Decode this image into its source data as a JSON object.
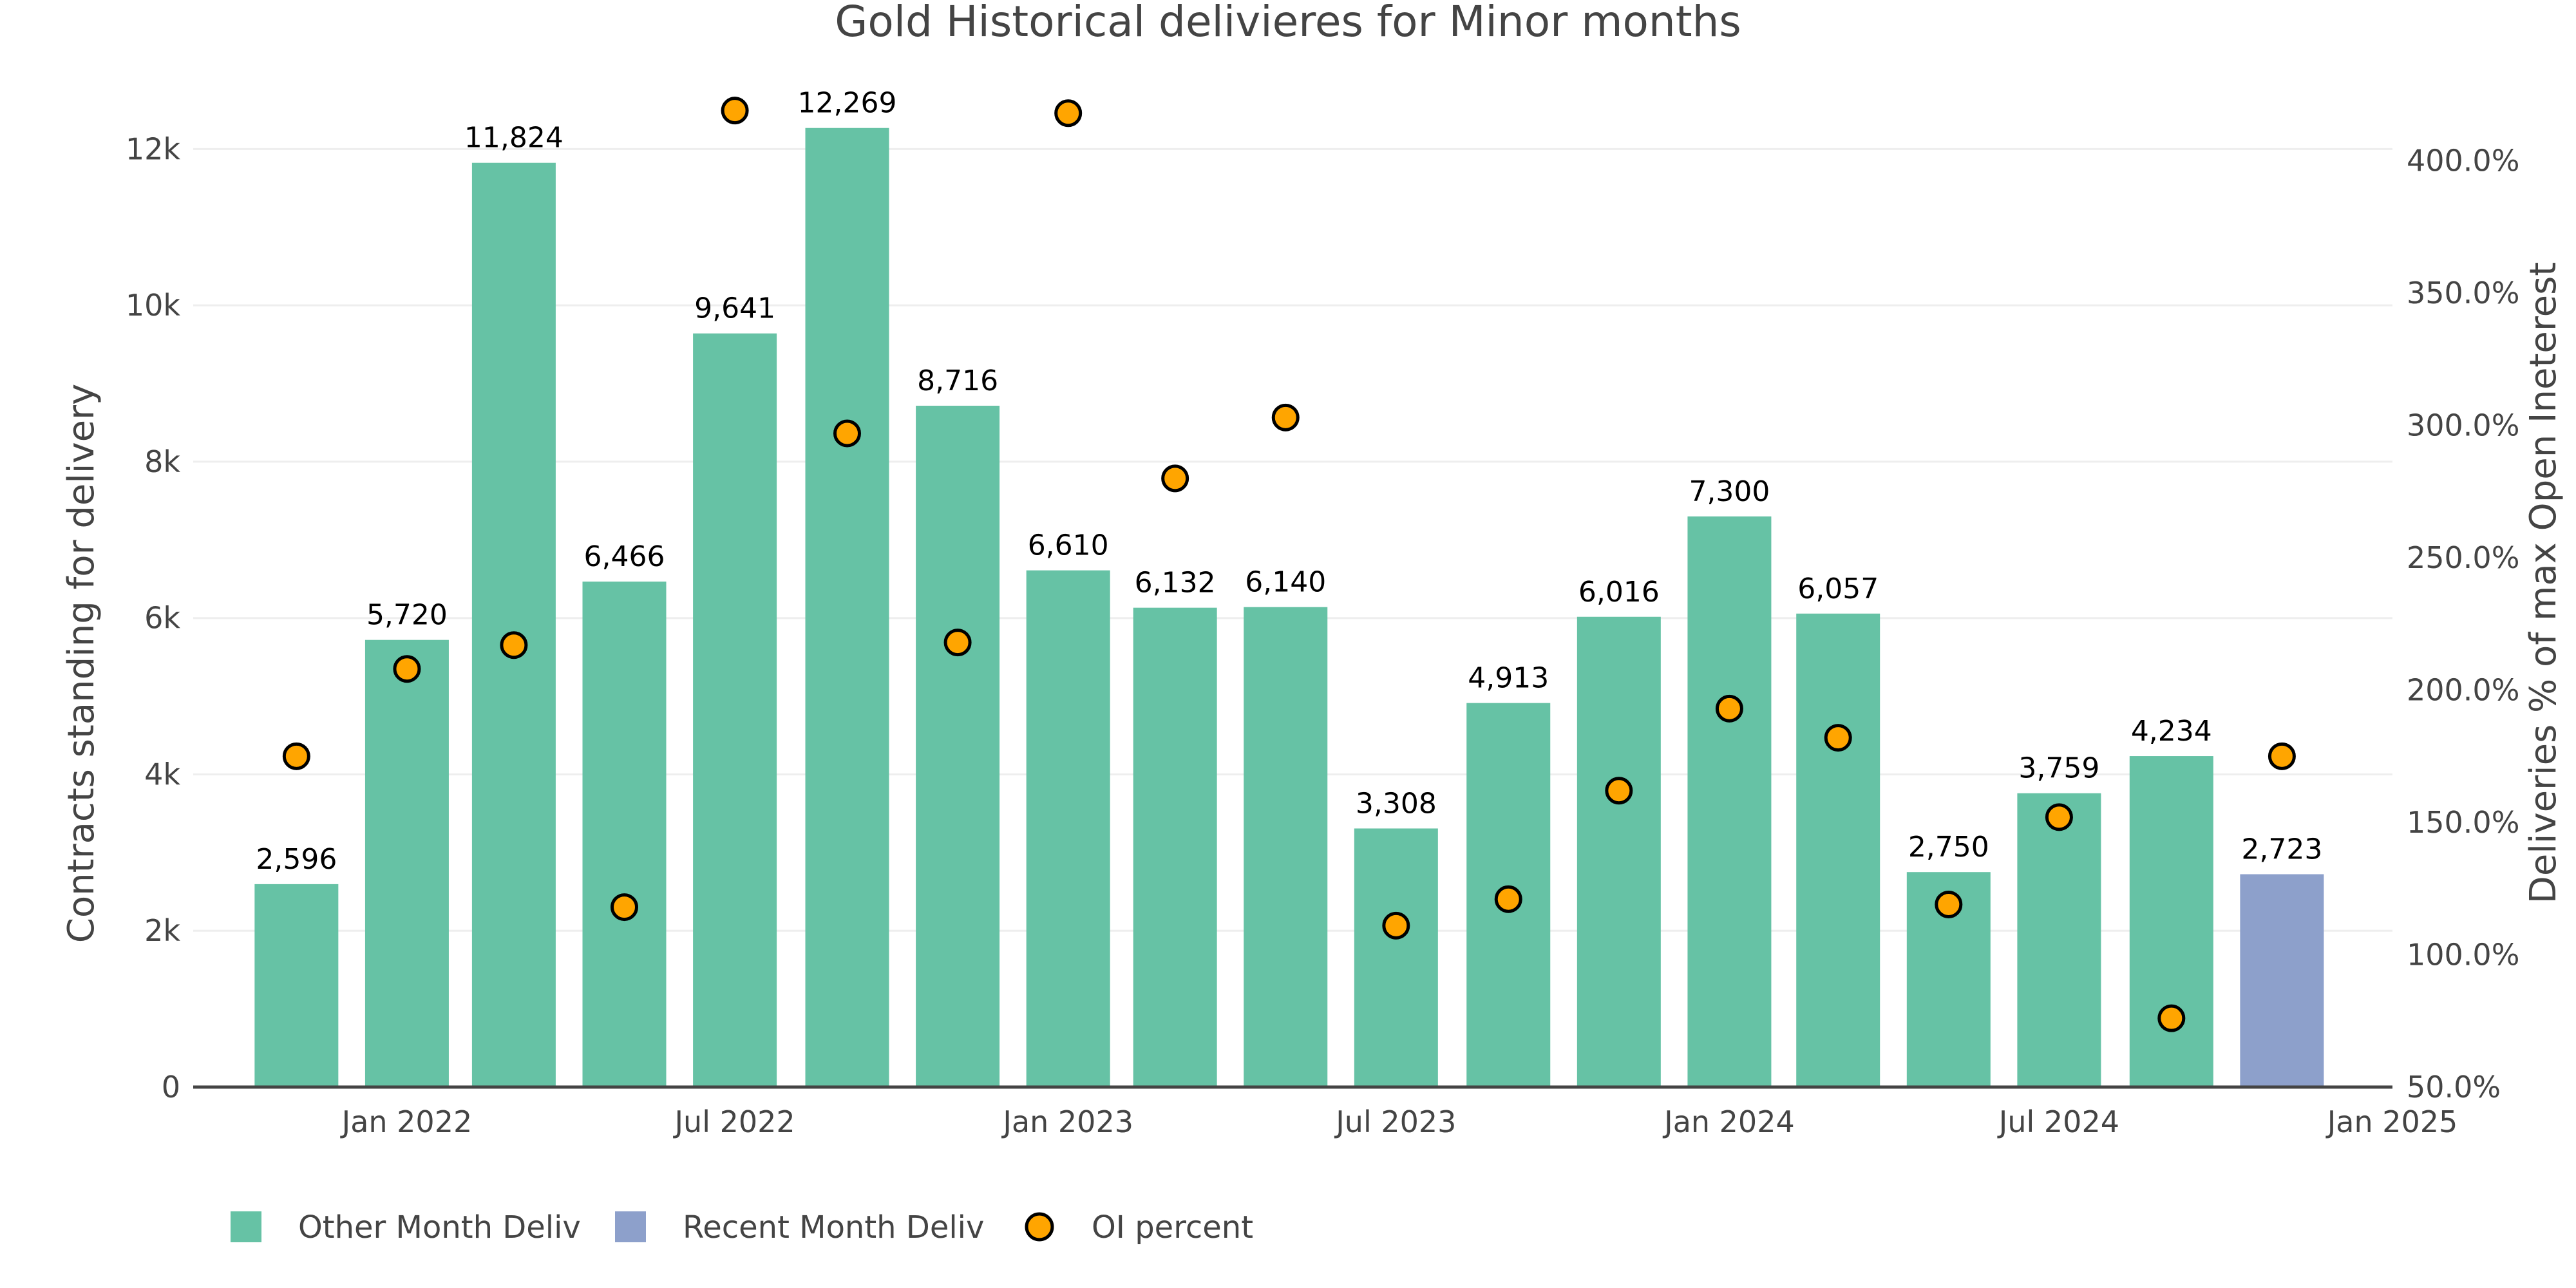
{
  "chart_data": {
    "type": "bar",
    "title": "Gold Historical delivieres for Minor months",
    "xlabel": "",
    "ylabel": "Contracts standing for delivery",
    "y2label": "Deliveries % of max Open Ineterest",
    "ylim": [
      0,
      13000
    ],
    "y2lim": [
      50,
      434
    ],
    "yticks": [
      0,
      2000,
      4000,
      6000,
      8000,
      10000,
      12000
    ],
    "ytick_labels": [
      "0",
      "2k",
      "4k",
      "6k",
      "8k",
      "10k",
      "12k"
    ],
    "y2ticks": [
      50,
      100,
      150,
      200,
      250,
      300,
      350,
      400
    ],
    "y2tick_labels": [
      "50.0%",
      "100.0%",
      "150.0%",
      "200.0%",
      "250.0%",
      "300.0%",
      "350.0%",
      "400.0%"
    ],
    "xrange": [
      "2021-09-05",
      "2025-01-01"
    ],
    "xticks": [
      "2022-01-01",
      "2022-07-01",
      "2023-01-01",
      "2023-07-01",
      "2024-01-01",
      "2024-07-01",
      "2025-01-01"
    ],
    "xtick_labels": [
      "Jan 2022",
      "Jul 2022",
      "Jan 2023",
      "Jul 2023",
      "Jan 2024",
      "Jul 2024",
      "Jan 2025"
    ],
    "grid": true,
    "legend_position": "bottom-left",
    "x": [
      "2021-11-01",
      "2022-01-01",
      "2022-03-01",
      "2022-05-01",
      "2022-07-01",
      "2022-09-01",
      "2022-11-01",
      "2023-01-01",
      "2023-03-01",
      "2023-05-01",
      "2023-07-01",
      "2023-09-01",
      "2023-11-01",
      "2024-01-01",
      "2024-03-01",
      "2024-05-01",
      "2024-07-01",
      "2024-09-01",
      "2024-11-01"
    ],
    "series": [
      {
        "name": "Other Month Deliv",
        "type": "bar",
        "axis": "y",
        "color": "#66c2a5",
        "values": [
          2596,
          5720,
          11824,
          6466,
          9641,
          12269,
          8716,
          6610,
          6132,
          6140,
          3308,
          4913,
          6016,
          7300,
          6057,
          2750,
          3759,
          4234,
          null
        ],
        "labels": [
          "2,596",
          "5,720",
          "11,824",
          "6,466",
          "9,641",
          "12,269",
          "8,716",
          "6,610",
          "6,132",
          "6,140",
          "3,308",
          "4,913",
          "6,016",
          "7,300",
          "6,057",
          "2,750",
          "3,759",
          "4,234",
          ""
        ]
      },
      {
        "name": "Recent Month Deliv",
        "type": "bar",
        "axis": "y",
        "color": "#8da0cb",
        "values": [
          null,
          null,
          null,
          null,
          null,
          null,
          null,
          null,
          null,
          null,
          null,
          null,
          null,
          null,
          null,
          null,
          null,
          null,
          2723
        ],
        "labels": [
          "",
          "",
          "",
          "",
          "",
          "",
          "",
          "",
          "",
          "",
          "",
          "",
          "",
          "",
          "",
          "",
          "",
          "",
          "2,723"
        ]
      },
      {
        "name": "OI percent",
        "type": "scatter",
        "axis": "y2",
        "color": "#ffa500",
        "values": [
          175,
          208,
          217,
          118,
          419,
          297,
          218,
          418,
          280,
          303,
          111,
          121,
          162,
          193,
          182,
          119,
          152,
          76,
          175
        ]
      }
    ]
  }
}
